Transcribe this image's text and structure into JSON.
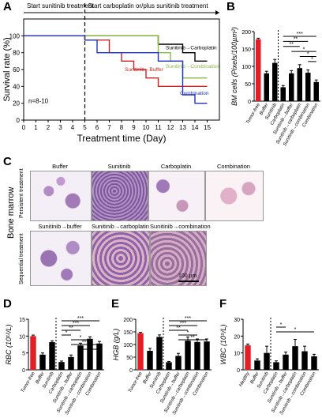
{
  "panel_letters": {
    "A": "A",
    "B": "B",
    "C": "C",
    "D": "D",
    "E": "E",
    "F": "F"
  },
  "chart_data": [
    {
      "id": "A",
      "type": "line",
      "xlabel": "Treatment time (Day)",
      "ylabel": "Survival rate (%)",
      "xlim": [
        0,
        16
      ],
      "ylim": [
        0,
        120
      ],
      "xticks": [
        0,
        1,
        2,
        3,
        4,
        5,
        6,
        7,
        8,
        9,
        10,
        11,
        12,
        13,
        14,
        15
      ],
      "yticks": [
        0,
        20,
        40,
        60,
        80,
        100
      ],
      "phase_labels": [
        "Start sunitinib treatment",
        "Start carboplatin or/plus sunitinib treatment"
      ],
      "n_label": "n=8-10",
      "series": [
        {
          "name": "Sunitinib→Carboplatin",
          "color": "#000000",
          "steps": [
            [
              0,
              100
            ],
            [
              5,
              100
            ],
            [
              11,
              90
            ],
            [
              13,
              80
            ],
            [
              14,
              70
            ],
            [
              15,
              70
            ]
          ]
        },
        {
          "name": "Sunitinib→Buffer",
          "color": "#cc2222",
          "steps": [
            [
              0,
              100
            ],
            [
              5,
              95
            ],
            [
              7,
              80
            ],
            [
              8,
              70
            ],
            [
              9,
              60
            ],
            [
              10,
              50
            ],
            [
              11,
              40
            ],
            [
              15,
              40
            ]
          ]
        },
        {
          "name": "Sunitinib→Combination",
          "color": "#88bb44",
          "steps": [
            [
              0,
              100
            ],
            [
              5,
              100
            ],
            [
              11,
              80
            ],
            [
              12,
              70
            ],
            [
              13,
              50
            ],
            [
              15,
              50
            ]
          ]
        },
        {
          "name": "Combination",
          "color": "#2233bb",
          "steps": [
            [
              0,
              100
            ],
            [
              5,
              95
            ],
            [
              6,
              80
            ],
            [
              10,
              80
            ],
            [
              11,
              70
            ],
            [
              13,
              30
            ],
            [
              14,
              20
            ],
            [
              15,
              20
            ]
          ]
        }
      ]
    },
    {
      "id": "B",
      "type": "bar",
      "ylabel": "BM cells (Pixels/100µm²)",
      "ylim": [
        0,
        200
      ],
      "yticks": [
        0,
        50,
        100,
        150,
        200
      ],
      "categories": [
        "Tumor-free",
        "Buffer",
        "Sunitinib",
        "Carboplatin",
        "Sunitinib→buffer",
        "Sunitinib→carboplatin",
        "Sunitinib→combination",
        "Combination"
      ],
      "values": [
        178,
        80,
        110,
        40,
        80,
        95,
        82,
        55
      ],
      "errors": [
        3,
        6,
        10,
        5,
        8,
        10,
        8,
        6
      ],
      "colors": [
        "#e21f26",
        "#000000",
        "#000000",
        "#000000",
        "#000000",
        "#000000",
        "#000000",
        "#000000"
      ],
      "significance": [
        {
          "from": 3,
          "to": 7,
          "label": "***"
        },
        {
          "from": 3,
          "to": 6,
          "label": "**"
        },
        {
          "from": 3,
          "to": 5,
          "label": "**"
        },
        {
          "from": 4,
          "to": 7,
          "label": "*"
        },
        {
          "from": 5,
          "to": 7,
          "label": "*"
        },
        {
          "from": 6,
          "to": 7,
          "label": "*"
        }
      ]
    },
    {
      "id": "D",
      "type": "bar",
      "ylabel": "RBC (10¹²/L)",
      "ylim": [
        0,
        15
      ],
      "yticks": [
        0,
        5,
        10,
        15
      ],
      "categories": [
        "Tumor-free",
        "Buffer",
        "Sunitinib",
        "Carboplatin",
        "Sunitinib→buffer",
        "Sunitinib→carboplatin",
        "Sunitinib→combination",
        "Combination"
      ],
      "values": [
        10,
        4.5,
        8.2,
        2.3,
        3.8,
        7.2,
        9.2,
        7.8
      ],
      "errors": [
        0.3,
        0.5,
        0.4,
        0.3,
        0.6,
        0.7,
        0.6,
        0.6
      ],
      "colors": [
        "#e21f26",
        "#000000",
        "#000000",
        "#000000",
        "#000000",
        "#000000",
        "#000000",
        "#000000"
      ],
      "significance": [
        {
          "from": 3,
          "to": 7,
          "label": "***"
        },
        {
          "from": 3,
          "to": 6,
          "label": "***"
        },
        {
          "from": 3,
          "to": 5,
          "label": "**"
        },
        {
          "from": 3,
          "to": 4,
          "label": "*"
        },
        {
          "from": 4,
          "to": 6,
          "label": "*"
        },
        {
          "from": 4,
          "to": 7,
          "label": "***"
        },
        {
          "from": 5,
          "to": 7,
          "label": "**"
        }
      ]
    },
    {
      "id": "E",
      "type": "bar",
      "ylabel": "HGB (g/L)",
      "ylim": [
        0,
        200
      ],
      "yticks": [
        0,
        50,
        100,
        150,
        200
      ],
      "categories": [
        "Tumor-free",
        "Buffer",
        "Sunitinib",
        "Carboplatin",
        "Sunitinib→buffer",
        "Sunitinib→carboplatin",
        "Sunitinib→combination",
        "Combination"
      ],
      "values": [
        145,
        75,
        130,
        30,
        55,
        115,
        110,
        112
      ],
      "errors": [
        3,
        10,
        8,
        3,
        10,
        15,
        12,
        10
      ],
      "colors": [
        "#e21f26",
        "#000000",
        "#000000",
        "#000000",
        "#000000",
        "#000000",
        "#000000",
        "#000000"
      ],
      "significance": [
        {
          "from": 3,
          "to": 7,
          "label": "***"
        },
        {
          "from": 3,
          "to": 6,
          "label": "***"
        },
        {
          "from": 3,
          "to": 5,
          "label": "**"
        },
        {
          "from": 4,
          "to": 6,
          "label": "*"
        },
        {
          "from": 4,
          "to": 7,
          "label": "**"
        }
      ]
    },
    {
      "id": "F",
      "type": "bar",
      "ylabel": "WBC (10⁹/L)",
      "ylim": [
        0,
        30
      ],
      "yticks": [
        0,
        10,
        20,
        30
      ],
      "categories": [
        "Healthy",
        "Buffer",
        "Sunitinib",
        "Carboplatin",
        "Sunitinib→buffer",
        "Sunitinib→carboplatin",
        "Sunitinib→combination",
        "Combination"
      ],
      "values": [
        14.5,
        5.5,
        10,
        4.5,
        9,
        14,
        11,
        8
      ],
      "errors": [
        0.8,
        1,
        4,
        0.8,
        1.5,
        4,
        3,
        1.2
      ],
      "colors": [
        "#e21f26",
        "#000000",
        "#000000",
        "#000000",
        "#000000",
        "#000000",
        "#000000",
        "#000000"
      ],
      "significance": [
        {
          "from": 3,
          "to": 4,
          "label": "*"
        },
        {
          "from": 3,
          "to": 7,
          "label": "*"
        }
      ]
    }
  ],
  "micrographs": {
    "side_label": "Bone marrow",
    "row_labels": [
      "Persistent treatment",
      "Sequential treatment"
    ],
    "top": [
      "Buffer",
      "Sunitinib",
      "Carboplatin",
      "Combination"
    ],
    "bottom": [
      "Sunitinib→buffer",
      "Sunitinib→carboplatin",
      "Sunitinib→combination"
    ],
    "scale_bar": "100 µm"
  }
}
